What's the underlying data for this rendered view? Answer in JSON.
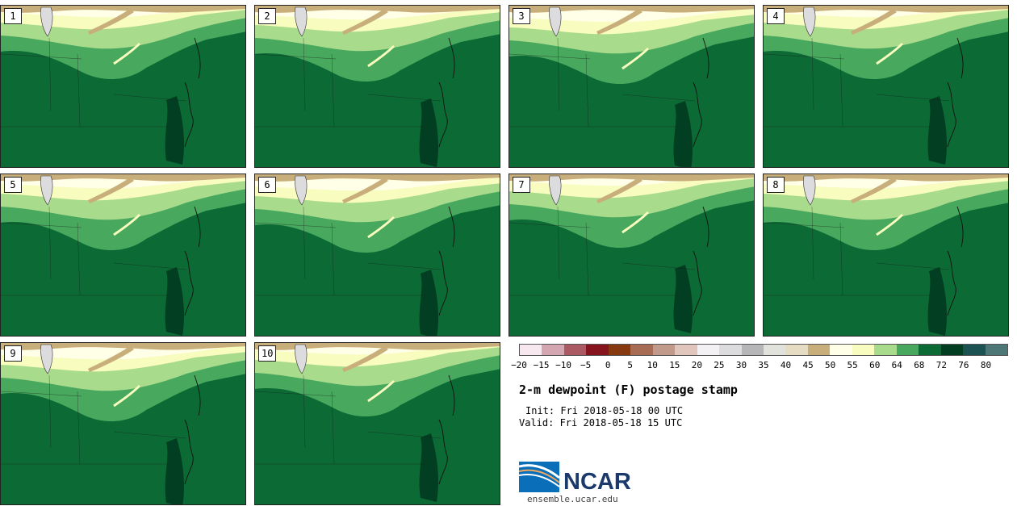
{
  "panels": [
    {
      "label": "1"
    },
    {
      "label": "2"
    },
    {
      "label": "3"
    },
    {
      "label": "4"
    },
    {
      "label": "5"
    },
    {
      "label": "6"
    },
    {
      "label": "7"
    },
    {
      "label": "8"
    },
    {
      "label": "9"
    },
    {
      "label": "10"
    }
  ],
  "colorbar": {
    "colors": [
      "#f6e8ee",
      "#d3a6b1",
      "#ab5a63",
      "#85141f",
      "#873910",
      "#a86c54",
      "#c29a8c",
      "#e0c6bc",
      "#f3f1f4",
      "#dcdcde",
      "#b6b6b8",
      "#e2e2dc",
      "#e6dcc4",
      "#c7ae7a",
      "#fffee6",
      "#f8fcbe",
      "#a9db8c",
      "#47a85e",
      "#0c6a35",
      "#023f22",
      "#1d5252",
      "#4c7776"
    ],
    "ticks": [
      "−20",
      "−15",
      "−10",
      "−5",
      "0",
      "5",
      "10",
      "15",
      "20",
      "25",
      "30",
      "35",
      "40",
      "45",
      "50",
      "55",
      "60",
      "64",
      "68",
      "72",
      "76",
      "80"
    ]
  },
  "map_colors": {
    "tan": "#c7ae7a",
    "cream": "#fffee6",
    "pale_yellow": "#f8fcbe",
    "light_green": "#a9db8c",
    "mid_green": "#47a85e",
    "dark_green": "#0c6a35",
    "darkest_green": "#023f22",
    "lake_gray": "#dcdcde"
  },
  "title": "2-m dewpoint (F) postage stamp",
  "init_line": "Init: Fri 2018-05-18 00 UTC",
  "valid_line": "Valid: Fri 2018-05-18 15 UTC",
  "logo": {
    "text": "NCAR",
    "url": "ensemble.ucar.edu",
    "blue": "#0a6fb8",
    "navy": "#1b3a6b"
  }
}
